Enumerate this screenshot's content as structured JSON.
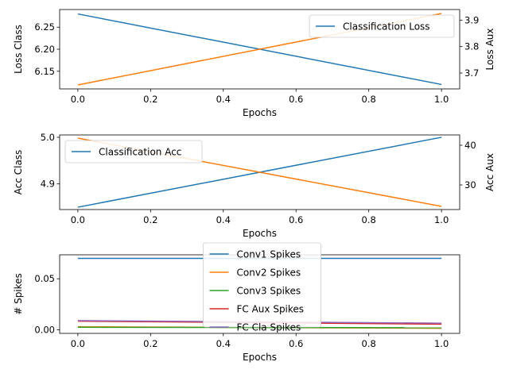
{
  "chart_data": [
    {
      "type": "line",
      "xlabel": "Epochs",
      "ylabel": "Loss Class",
      "ylabel_right": "Loss Aux",
      "xlim": [
        -0.05,
        1.05
      ],
      "ylim": [
        6.11,
        6.29
      ],
      "ylim_right": [
        3.64,
        3.94
      ],
      "xticks": [
        "0.0",
        "0.2",
        "0.4",
        "0.6",
        "0.8",
        "1.0"
      ],
      "yticks": [
        "6.15",
        "6.20",
        "6.25"
      ],
      "yticks_right": [
        "3.7",
        "3.8",
        "3.9"
      ],
      "legend": "upper right",
      "series": [
        {
          "name": "Classification Loss",
          "axis": "left",
          "color": "#1f77b4",
          "x": [
            0,
            1
          ],
          "y": [
            6.28,
            6.12
          ]
        },
        {
          "axis": "right",
          "color": "#ff7f0e",
          "x": [
            0,
            1
          ],
          "y": [
            3.655,
            3.925
          ]
        }
      ]
    },
    {
      "type": "line",
      "xlabel": "Epochs",
      "ylabel": "Acc Class",
      "ylabel_right": "Acc Aux",
      "xlim": [
        -0.05,
        1.05
      ],
      "ylim": [
        4.845,
        5.005
      ],
      "ylim_right": [
        23.8,
        42.6
      ],
      "xticks": [
        "0.0",
        "0.2",
        "0.4",
        "0.6",
        "0.8",
        "1.0"
      ],
      "yticks": [
        "4.9",
        "5.0"
      ],
      "yticks_right": [
        "30",
        "40"
      ],
      "legend": "upper left",
      "series": [
        {
          "name": "Classification Acc",
          "axis": "left",
          "color": "#1f77b4",
          "x": [
            0,
            1
          ],
          "y": [
            4.85,
            5.0
          ]
        },
        {
          "axis": "right",
          "color": "#ff7f0e",
          "x": [
            0,
            1
          ],
          "y": [
            41.8,
            24.6
          ]
        }
      ]
    },
    {
      "type": "line",
      "xlabel": "Epochs",
      "ylabel": "# Spikes",
      "xlim": [
        -0.05,
        1.05
      ],
      "ylim": [
        -0.0035,
        0.0735
      ],
      "xticks": [
        "0.0",
        "0.2",
        "0.4",
        "0.6",
        "0.8",
        "1.0"
      ],
      "yticks": [
        "0.00",
        "0.05"
      ],
      "legend": "upper center",
      "series": [
        {
          "name": "Conv1 Spikes",
          "color": "#1f77b4",
          "x": [
            0,
            1
          ],
          "y": [
            0.07,
            0.07
          ]
        },
        {
          "name": "Conv2 Spikes",
          "color": "#ff7f0e",
          "x": [
            0,
            1
          ],
          "y": [
            0.003,
            0.0015
          ]
        },
        {
          "name": "Conv3 Spikes",
          "color": "#2ca02c",
          "x": [
            0,
            1
          ],
          "y": [
            0.0025,
            0.002
          ]
        },
        {
          "name": "FC Aux Spikes",
          "color": "#d62728",
          "x": [
            0,
            1
          ],
          "y": [
            0.0085,
            0.0055
          ]
        },
        {
          "name": "FC Cla Spikes",
          "color": "#9467bd",
          "x": [
            0,
            1
          ],
          "y": [
            0.009,
            0.0065
          ]
        }
      ]
    }
  ]
}
